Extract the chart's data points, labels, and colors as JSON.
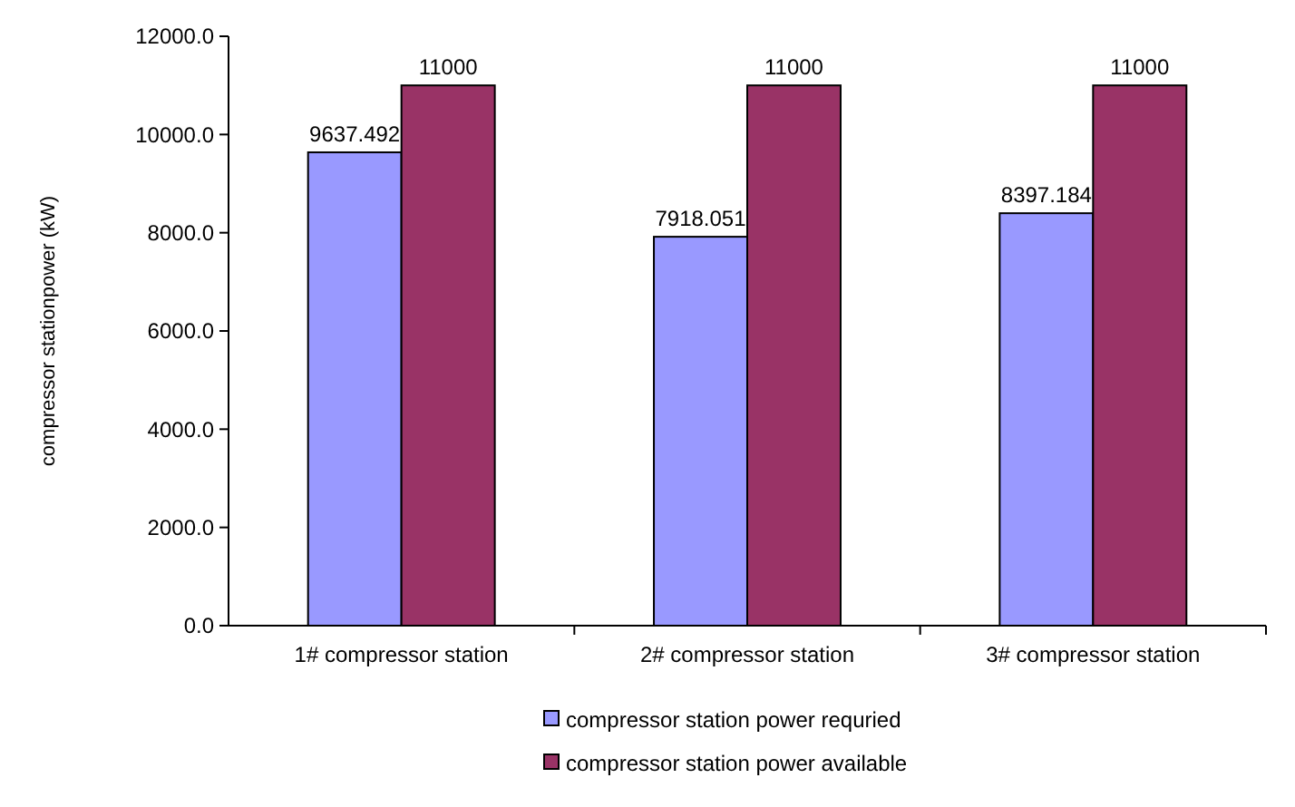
{
  "chart_data": {
    "type": "bar",
    "ylabel": "compressor stationpower (kW)",
    "categories": [
      "1# compressor station",
      "2# compressor station",
      "3# compressor station"
    ],
    "series": [
      {
        "name": "compressor station power requried",
        "color": "#9999ff",
        "values": [
          9637.492,
          7918.051,
          8397.184
        ]
      },
      {
        "name": "compressor station power available",
        "color": "#993366",
        "values": [
          11000,
          11000,
          11000
        ]
      }
    ],
    "ylim": [
      0,
      12000
    ],
    "yticks": [
      {
        "value": 0,
        "label": "0.0"
      },
      {
        "value": 2000,
        "label": "2000.0"
      },
      {
        "value": 4000,
        "label": "4000.0"
      },
      {
        "value": 6000,
        "label": "6000.0"
      },
      {
        "value": 8000,
        "label": "8000.0"
      },
      {
        "value": 10000,
        "label": "10000.0"
      },
      {
        "value": 12000,
        "label": "12000.0"
      }
    ],
    "data_labels": true,
    "grid": false,
    "legend": "bottom"
  }
}
